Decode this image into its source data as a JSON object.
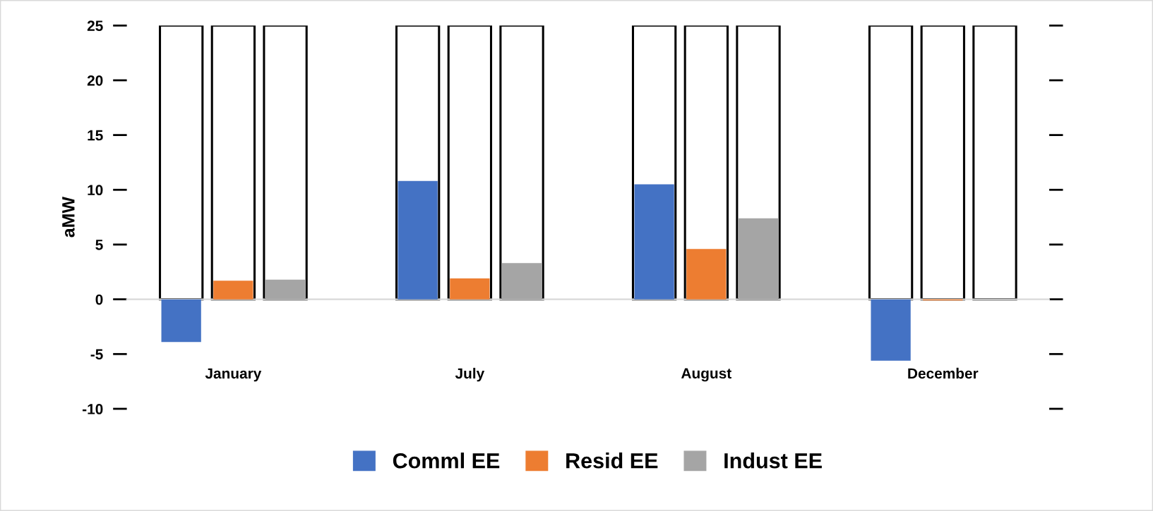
{
  "chart_data": {
    "type": "bar",
    "ylabel": "aMW",
    "categories": [
      "January",
      "July",
      "August",
      "December"
    ],
    "series": [
      {
        "color": "#ffffff",
        "values": [
          25,
          25,
          25,
          25
        ]
      },
      {
        "color": "#ffffff",
        "values": [
          25,
          25,
          25,
          25
        ]
      },
      {
        "color": "#ffffff",
        "values": [
          25,
          25,
          25,
          25
        ]
      },
      {
        "name": "Comml EE",
        "color": "#4472c4",
        "values": [
          -3.9,
          10.8,
          10.5,
          -5.6
        ]
      },
      {
        "name": "Resid EE",
        "color": "#ed7d31",
        "values": [
          1.7,
          1.9,
          4.6,
          -0.1
        ]
      },
      {
        "name": "Indust EE",
        "color": "#a5a5a5",
        "values": [
          1.8,
          3.3,
          7.4,
          0.0
        ]
      }
    ],
    "ylim": [
      -10,
      25
    ],
    "yticks": [
      -10,
      -5,
      0,
      5,
      10,
      15,
      20,
      25
    ],
    "legend": "bottom"
  }
}
